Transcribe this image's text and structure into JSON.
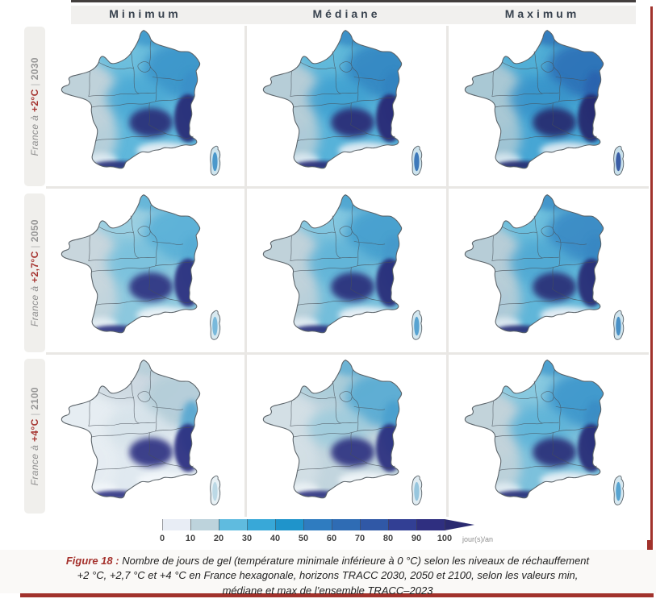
{
  "figure": {
    "columns": [
      "Minimum",
      "Médiane",
      "Maximum"
    ],
    "rows": [
      {
        "prefix": "France à ",
        "temp": "+2°C",
        "sep": " | ",
        "year": "2030"
      },
      {
        "prefix": "France à ",
        "temp": "+2,7°C",
        "sep": " | ",
        "year": "2050"
      },
      {
        "prefix": "France à ",
        "temp": "+4°C",
        "sep": " | ",
        "year": "2100"
      }
    ],
    "maps": [
      {
        "row": "2030",
        "column": "Minimum",
        "palette": {
          "base": "#5fb7db",
          "west": "#bfd2da",
          "north": "#6fc0dd",
          "northeast": "#3e96cb",
          "east": "#3a8fc8",
          "center": "#4ba9d4",
          "mountain": "#2b2e78",
          "coast": "#e9f0f5",
          "corsica": "#cfe5ee",
          "corsicaCore": "#3c8fc6"
        }
      },
      {
        "row": "2030",
        "column": "Médiane",
        "palette": {
          "base": "#57b2d9",
          "west": "#b6cdd7",
          "north": "#63bada",
          "northeast": "#3488c3",
          "east": "#3182bf",
          "center": "#41a0d0",
          "mountain": "#292c74",
          "coast": "#e6eef4",
          "corsica": "#cce3ed",
          "corsicaCore": "#2f6db4"
        }
      },
      {
        "row": "2030",
        "column": "Maximum",
        "palette": {
          "base": "#47a6d4",
          "west": "#a9c8d4",
          "north": "#52b0d6",
          "northeast": "#2f72b8",
          "east": "#2b62ad",
          "center": "#3793c9",
          "mountain": "#262a6e",
          "coast": "#e2ecf3",
          "corsica": "#c8e0eb",
          "corsicaCore": "#2a4f9e"
        }
      },
      {
        "row": "2050",
        "column": "Minimum",
        "palette": {
          "base": "#8cc8de",
          "west": "#c8d6dd",
          "north": "#9dd0e2",
          "northeast": "#5bb1d7",
          "east": "#57acd4",
          "center": "#79c1dd",
          "mountain": "#2e3280",
          "coast": "#edf3f7",
          "corsica": "#d8e9f0",
          "corsicaCore": "#6fb4d8"
        }
      },
      {
        "row": "2050",
        "column": "Médiane",
        "palette": {
          "base": "#74bedb",
          "west": "#c0d2da",
          "north": "#86c8e0",
          "northeast": "#47a0cf",
          "east": "#4499cb",
          "center": "#60b4d8",
          "mountain": "#2b2f7a",
          "coast": "#ebf1f6",
          "corsica": "#d4e7ef",
          "corsicaCore": "#4a9bcd"
        }
      },
      {
        "row": "2050",
        "column": "Maximum",
        "palette": {
          "base": "#60b6d9",
          "west": "#b7cdd7",
          "north": "#70c0dd",
          "northeast": "#3a8cc6",
          "east": "#3787c2",
          "center": "#4fa8d3",
          "mountain": "#292d76",
          "coast": "#e8eff5",
          "corsica": "#d0e4ed",
          "corsicaCore": "#3a86c1"
        }
      },
      {
        "row": "2100",
        "column": "Minimum",
        "palette": {
          "base": "#e0e9f0",
          "west": "#e6edf2",
          "north": "#ccd8e0",
          "northeast": "#b4cdd8",
          "east": "#54a6d0",
          "center": "#d5e2e9",
          "mountain": "#2f3382",
          "coast": "#f3f7fa",
          "corsica": "#e8f1f5",
          "corsicaCore": "#b7d6e4"
        }
      },
      {
        "row": "2100",
        "column": "Médiane",
        "palette": {
          "base": "#c2d5de",
          "west": "#d3dfe5",
          "north": "#a9ccd9",
          "northeast": "#5aacd3",
          "east": "#4a9fce",
          "center": "#9ccbdc",
          "mountain": "#2d3180",
          "coast": "#f0f5f8",
          "corsica": "#e0ecf2",
          "corsicaCore": "#8fc2dc"
        }
      },
      {
        "row": "2100",
        "column": "Maximum",
        "palette": {
          "base": "#7cc1dc",
          "west": "#c2d3da",
          "north": "#8acae0",
          "northeast": "#4198cc",
          "east": "#3b8cc4",
          "center": "#5db3d8",
          "mountain": "#2a2e78",
          "coast": "#eaf1f6",
          "corsica": "#d6e8f0",
          "corsicaCore": "#4a9ccd"
        }
      }
    ],
    "colorbar": {
      "ticks": [
        0,
        10,
        20,
        30,
        40,
        50,
        60,
        70,
        80,
        90,
        100
      ],
      "unit": "jour(s)/an",
      "colors": [
        "#e8edf5",
        "#bdd3dc",
        "#5fbbdf",
        "#38a8d8",
        "#1f94cb",
        "#2f7cc0",
        "#2f6cb4",
        "#3058a6",
        "#323f94",
        "#2f2f80"
      ],
      "arrow_color": "#2a2a70"
    },
    "caption": {
      "label": "Figure 18 :",
      "text": " Nombre de jours de gel (température minimale inférieure à 0 °C) selon les niveaux de réchauffement +2 °C, +2,7 °C et +4 °C en France hexagonale, horizons TRACC 2030, 2050 et 2100, selon les valeurs min, médiane et max de l’ensemble TRACC–2023"
    },
    "accent_red": "#a1322c"
  }
}
